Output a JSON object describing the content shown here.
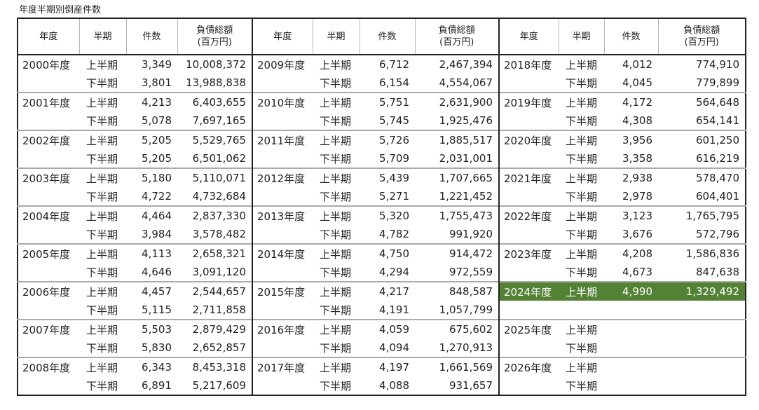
{
  "caption": "年度半期別倒産件数",
  "headers": {
    "year": "年度",
    "half": "半期",
    "count": "件数",
    "debt_line1": "負債総額",
    "debt_line2": "(百万円)"
  },
  "highlight_color": "#548235",
  "rows": [
    {
      "y1": "2000年度",
      "h1": "上半期",
      "c1": "3,349",
      "d1": "10,008,372",
      "y2": "2009年度",
      "h2": "上半期",
      "c2": "6,712",
      "d2": "2,467,394",
      "y3": "2018年度",
      "h3": "上半期",
      "c3": "4,012",
      "d3": "774,910"
    },
    {
      "y1": "",
      "h1": "下半期",
      "c1": "3,801",
      "d1": "13,988,838",
      "y2": "",
      "h2": "下半期",
      "c2": "6,154",
      "d2": "4,554,067",
      "y3": "",
      "h3": "下半期",
      "c3": "4,045",
      "d3": "779,899"
    },
    {
      "y1": "2001年度",
      "h1": "上半期",
      "c1": "4,213",
      "d1": "6,403,655",
      "y2": "2010年度",
      "h2": "上半期",
      "c2": "5,751",
      "d2": "2,631,900",
      "y3": "2019年度",
      "h3": "上半期",
      "c3": "4,172",
      "d3": "564,648"
    },
    {
      "y1": "",
      "h1": "下半期",
      "c1": "5,078",
      "d1": "7,697,165",
      "y2": "",
      "h2": "下半期",
      "c2": "5,745",
      "d2": "1,925,476",
      "y3": "",
      "h3": "下半期",
      "c3": "4,308",
      "d3": "654,141"
    },
    {
      "y1": "2002年度",
      "h1": "上半期",
      "c1": "5,205",
      "d1": "5,529,765",
      "y2": "2011年度",
      "h2": "上半期",
      "c2": "5,726",
      "d2": "1,885,517",
      "y3": "2020年度",
      "h3": "上半期",
      "c3": "3,956",
      "d3": "601,250"
    },
    {
      "y1": "",
      "h1": "下半期",
      "c1": "5,205",
      "d1": "6,501,062",
      "y2": "",
      "h2": "下半期",
      "c2": "5,709",
      "d2": "2,031,001",
      "y3": "",
      "h3": "下半期",
      "c3": "3,358",
      "d3": "616,219"
    },
    {
      "y1": "2003年度",
      "h1": "上半期",
      "c1": "5,180",
      "d1": "5,110,071",
      "y2": "2012年度",
      "h2": "上半期",
      "c2": "5,439",
      "d2": "1,707,665",
      "y3": "2021年度",
      "h3": "上半期",
      "c3": "2,938",
      "d3": "578,470"
    },
    {
      "y1": "",
      "h1": "下半期",
      "c1": "4,722",
      "d1": "4,732,684",
      "y2": "",
      "h2": "下半期",
      "c2": "5,271",
      "d2": "1,221,452",
      "y3": "",
      "h3": "下半期",
      "c3": "2,978",
      "d3": "604,401"
    },
    {
      "y1": "2004年度",
      "h1": "上半期",
      "c1": "4,464",
      "d1": "2,837,330",
      "y2": "2013年度",
      "h2": "上半期",
      "c2": "5,320",
      "d2": "1,755,473",
      "y3": "2022年度",
      "h3": "上半期",
      "c3": "3,123",
      "d3": "1,765,795"
    },
    {
      "y1": "",
      "h1": "下半期",
      "c1": "3,984",
      "d1": "3,578,482",
      "y2": "",
      "h2": "下半期",
      "c2": "4,782",
      "d2": "991,920",
      "y3": "",
      "h3": "下半期",
      "c3": "3,676",
      "d3": "572,796"
    },
    {
      "y1": "2005年度",
      "h1": "上半期",
      "c1": "4,113",
      "d1": "2,658,321",
      "y2": "2014年度",
      "h2": "上半期",
      "c2": "4,750",
      "d2": "914,472",
      "y3": "2023年度",
      "h3": "上半期",
      "c3": "4,208",
      "d3": "1,586,836"
    },
    {
      "y1": "",
      "h1": "下半期",
      "c1": "4,646",
      "d1": "3,091,120",
      "y2": "",
      "h2": "下半期",
      "c2": "4,294",
      "d2": "972,559",
      "y3": "",
      "h3": "下半期",
      "c3": "4,673",
      "d3": "847,638"
    },
    {
      "y1": "2006年度",
      "h1": "上半期",
      "c1": "4,457",
      "d1": "2,544,657",
      "y2": "2015年度",
      "h2": "上半期",
      "c2": "4,217",
      "d2": "848,587",
      "y3": "2024年度",
      "h3": "上半期",
      "c3": "4,990",
      "d3": "1,329,492",
      "highlight": true
    },
    {
      "y1": "",
      "h1": "下半期",
      "c1": "5,115",
      "d1": "2,711,858",
      "y2": "",
      "h2": "下半期",
      "c2": "4,191",
      "d2": "1,057,799",
      "y3": "",
      "h3": "",
      "c3": "",
      "d3": ""
    },
    {
      "y1": "2007年度",
      "h1": "上半期",
      "c1": "5,503",
      "d1": "2,879,429",
      "y2": "2016年度",
      "h2": "上半期",
      "c2": "4,059",
      "d2": "675,602",
      "y3": "2025年度",
      "h3": "上半期",
      "c3": "",
      "d3": ""
    },
    {
      "y1": "",
      "h1": "下半期",
      "c1": "5,830",
      "d1": "2,652,857",
      "y2": "",
      "h2": "下半期",
      "c2": "4,094",
      "d2": "1,270,913",
      "y3": "",
      "h3": "下半期",
      "c3": "",
      "d3": ""
    },
    {
      "y1": "2008年度",
      "h1": "上半期",
      "c1": "6,343",
      "d1": "8,453,318",
      "y2": "2017年度",
      "h2": "上半期",
      "c2": "4,197",
      "d2": "1,661,569",
      "y3": "2026年度",
      "h3": "上半期",
      "c3": "",
      "d3": ""
    },
    {
      "y1": "",
      "h1": "下半期",
      "c1": "6,891",
      "d1": "5,217,609",
      "y2": "",
      "h2": "下半期",
      "c2": "4,088",
      "d2": "931,657",
      "y3": "",
      "h3": "下半期",
      "c3": "",
      "d3": ""
    }
  ]
}
